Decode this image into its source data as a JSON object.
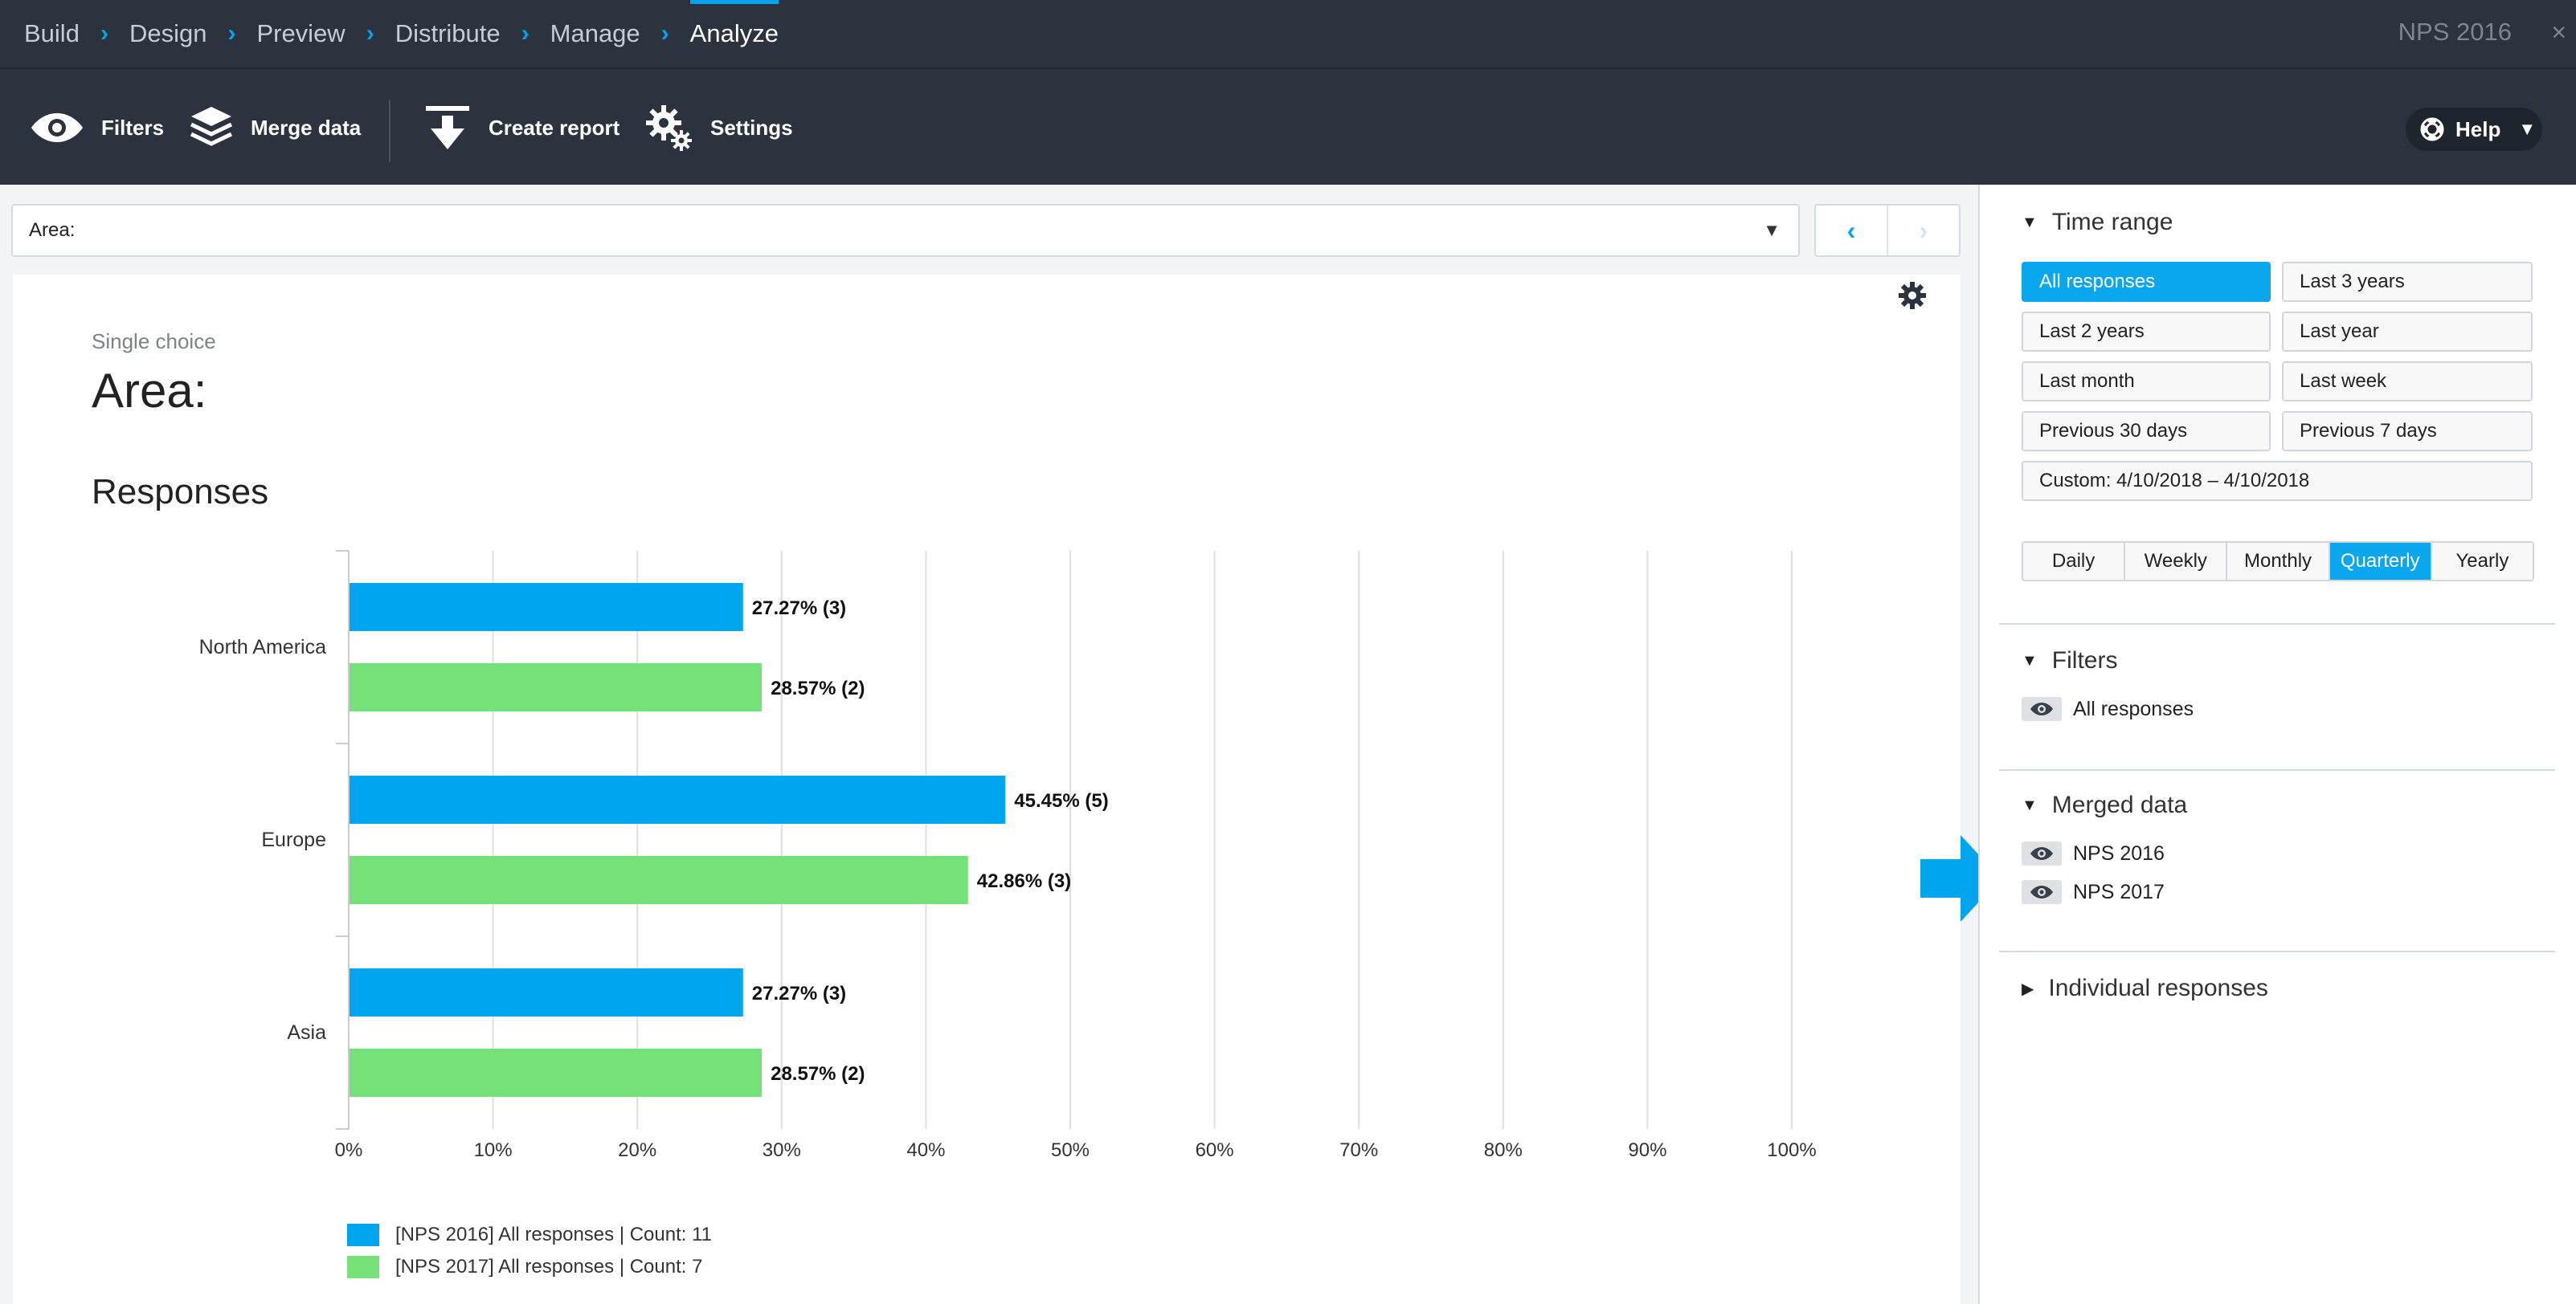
{
  "nav": {
    "crumbs": [
      "Build",
      "Design",
      "Preview",
      "Distribute",
      "Manage",
      "Analyze"
    ],
    "active_index": 5,
    "project_title": "NPS 2016",
    "close_symbol": "×"
  },
  "toolbar": {
    "filters_label": "Filters",
    "merge_label": "Merge data",
    "create_report_label": "Create report",
    "settings_label": "Settings",
    "help_label": "Help"
  },
  "filterbar": {
    "label": "Area:"
  },
  "question": {
    "type": "Single choice",
    "title": "Area:",
    "section": "Responses"
  },
  "chart_data": {
    "type": "bar",
    "orientation": "horizontal",
    "categories": [
      "North America",
      "Europe",
      "Asia"
    ],
    "series": [
      {
        "name": "[NPS 2016] All responses | Count: 11",
        "color": "#00a6ed",
        "values": [
          27.27,
          45.45,
          27.27
        ],
        "labels": [
          "27.27% (3)",
          "45.45% (5)",
          "27.27% (3)"
        ]
      },
      {
        "name": "[NPS 2017] All responses | Count: 7",
        "color": "#76e176",
        "values": [
          28.57,
          42.86,
          28.57
        ],
        "labels": [
          "28.57% (2)",
          "42.86% (3)",
          "28.57% (2)"
        ]
      }
    ],
    "x_ticks": [
      "0%",
      "10%",
      "20%",
      "30%",
      "40%",
      "50%",
      "60%",
      "70%",
      "80%",
      "90%",
      "100%"
    ],
    "xlim": [
      0,
      100
    ],
    "grid": true,
    "legend_position": "bottom-left"
  },
  "sidebar": {
    "time_range": {
      "title": "Time range",
      "buttons": [
        "All responses",
        "Last 3 years",
        "Last 2 years",
        "Last year",
        "Last month",
        "Last week",
        "Previous 30 days",
        "Previous 7 days"
      ],
      "custom": "Custom: 4/10/2018 – 4/10/2018",
      "active": "All responses"
    },
    "granularity": {
      "options": [
        "Daily",
        "Weekly",
        "Monthly",
        "Quarterly",
        "Yearly"
      ],
      "active": "Quarterly"
    },
    "filters": {
      "title": "Filters",
      "items": [
        "All responses"
      ]
    },
    "merged": {
      "title": "Merged data",
      "items": [
        "NPS 2016",
        "NPS 2017"
      ]
    },
    "individual": {
      "title": "Individual responses"
    }
  },
  "colors": {
    "accent": "#00a6ed",
    "series2": "#76e176",
    "nav_bg": "#2c333e"
  }
}
